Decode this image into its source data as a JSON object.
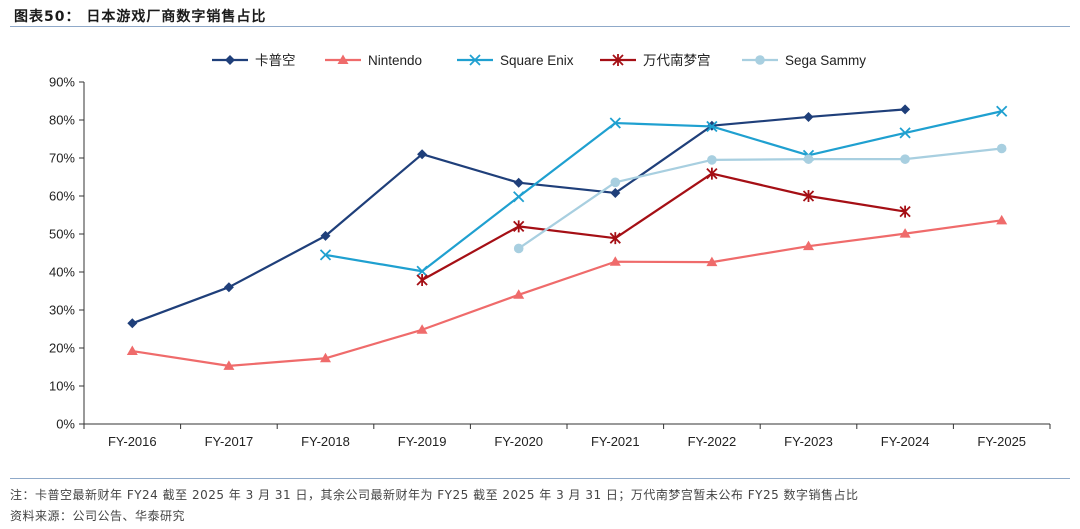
{
  "header": {
    "title": "图表50：   日本游戏厂商数字销售占比"
  },
  "chart_data": {
    "type": "line",
    "title": "日本游戏厂商数字销售占比",
    "categories": [
      "FY-2016",
      "FY-2017",
      "FY-2018",
      "FY-2019",
      "FY-2020",
      "FY-2021",
      "FY-2022",
      "FY-2023",
      "FY-2024",
      "FY-2025"
    ],
    "ylim": [
      0,
      90
    ],
    "yticks": [
      0,
      10,
      20,
      30,
      40,
      50,
      60,
      70,
      80,
      90
    ],
    "ytick_labels": [
      "0%",
      "10%",
      "20%",
      "30%",
      "40%",
      "50%",
      "60%",
      "70%",
      "80%",
      "90%"
    ],
    "legend_position": "top",
    "series": [
      {
        "name": "卡普空",
        "color": "#1f3f7a",
        "marker": "diamond",
        "values": [
          26.5,
          36.0,
          49.5,
          71.0,
          63.5,
          60.8,
          78.5,
          80.8,
          82.8,
          null
        ]
      },
      {
        "name": "Nintendo",
        "color": "#ef6b6b",
        "marker": "triangle",
        "values": [
          19.2,
          15.3,
          17.3,
          24.8,
          34.0,
          42.7,
          42.6,
          46.8,
          50.1,
          53.6
        ]
      },
      {
        "name": "Square Enix",
        "color": "#1fa0d0",
        "marker": "x",
        "values": [
          null,
          null,
          44.5,
          40.2,
          59.8,
          79.2,
          78.3,
          70.7,
          76.6,
          82.3
        ]
      },
      {
        "name": "万代南梦宫",
        "color": "#a50f15",
        "marker": "star",
        "values": [
          null,
          null,
          null,
          37.9,
          52.0,
          48.9,
          65.9,
          60.0,
          55.9,
          null
        ]
      },
      {
        "name": "Sega Sammy",
        "color": "#a8cfe0",
        "marker": "circle",
        "values": [
          null,
          null,
          null,
          null,
          46.2,
          63.6,
          69.5,
          69.7,
          69.7,
          72.5
        ]
      }
    ]
  },
  "footer": {
    "note": "注：卡普空最新财年 FY24 截至 2025 年 3 月 31 日，其余公司最新财年为 FY25 截至 2025 年 3 月 31 日；万代南梦宫暂未公布 FY25 数字销售占比",
    "source": "资料来源：公司公告、华泰研究"
  }
}
